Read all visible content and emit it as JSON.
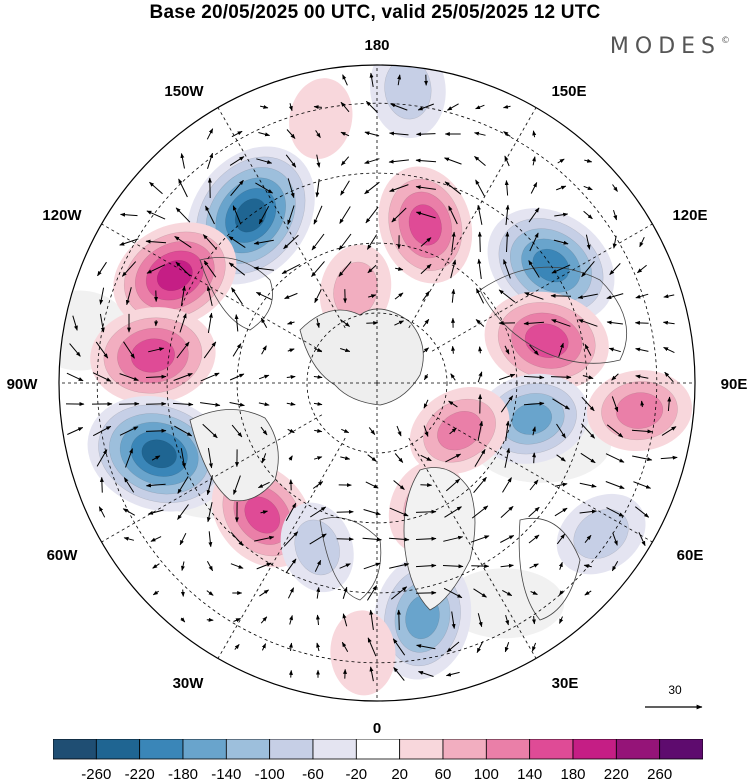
{
  "title": "Base 20/05/2025 00 UTC, valid 25/05/2025 12 UTC",
  "brand": "MODES",
  "brand_mark": "©",
  "longitude_labels": {
    "deg180": "180",
    "deg150e": "150E",
    "deg120e": "120E",
    "deg90e": "90E",
    "deg60e": "60E",
    "deg30e": "30E",
    "deg0": "0",
    "deg30w": "30W",
    "deg60w": "60W",
    "deg90w": "90W",
    "deg120w": "120W",
    "deg150w": "150W"
  },
  "vector_reference": {
    "label": "30"
  },
  "colorbar": {
    "tick_labels": [
      "-260",
      "-220",
      "-180",
      "-140",
      "-100",
      "-60",
      "-20",
      "20",
      "60",
      "100",
      "140",
      "180",
      "220",
      "260"
    ],
    "colors": [
      "#1f4e73",
      "#1f6592",
      "#3a86b8",
      "#69a4cc",
      "#9dbfdc",
      "#c6cfe6",
      "#e4e4f1",
      "#ffffff",
      "#f8d7dc",
      "#f2aec0",
      "#ea7fa8",
      "#df4b96",
      "#c51e85",
      "#951478",
      "#5e0b6e"
    ]
  },
  "map": {
    "projection": "north polar stereographic",
    "anomalies": [
      {
        "lon": -143,
        "r": 0.66,
        "value": -240
      },
      {
        "lon": 124,
        "r": 0.66,
        "value": -200
      },
      {
        "lon": -118,
        "r": 0.72,
        "value": 180
      },
      {
        "lon": -97,
        "r": 0.71,
        "value": 170
      },
      {
        "lon": -72,
        "r": 0.72,
        "value": -230
      },
      {
        "lon": 163,
        "r": 0.52,
        "value": 150
      },
      {
        "lon": 104,
        "r": 0.55,
        "value": 170
      },
      {
        "lon": 77,
        "r": 0.5,
        "value": -140
      },
      {
        "lon": -41,
        "r": 0.55,
        "value": 140
      },
      {
        "lon": 11,
        "r": 0.75,
        "value": -170
      },
      {
        "lon": 56,
        "r": 0.85,
        "value": -80
      },
      {
        "lon": 60,
        "r": 0.3,
        "value": 110
      },
      {
        "lon": 84,
        "r": 0.83,
        "value": 110
      },
      {
        "lon": -167,
        "r": 0.3,
        "value": 70
      },
      {
        "lon": 174,
        "r": 0.93,
        "value": -90
      },
      {
        "lon": 22,
        "r": 0.42,
        "value": 80
      },
      {
        "lon": -20,
        "r": 0.55,
        "value": -70
      },
      {
        "lon": -3,
        "r": 0.85,
        "value": 50
      },
      {
        "lon": -168,
        "r": 0.85,
        "value": 40
      }
    ]
  }
}
